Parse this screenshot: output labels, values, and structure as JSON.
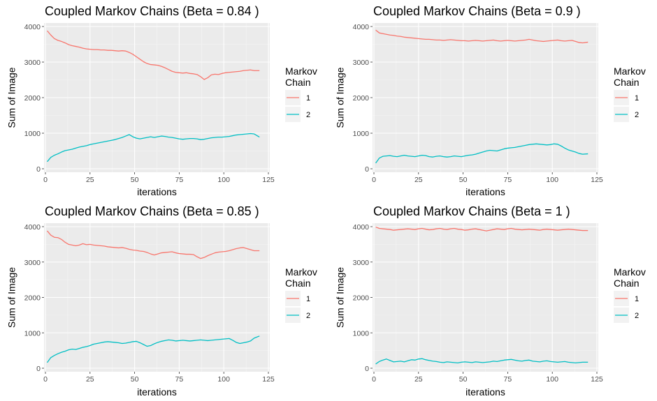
{
  "chart_data": [
    {
      "type": "line",
      "title": "Coupled Markov Chains (Beta = 0.84 )",
      "xlabel": "iterations",
      "ylabel": "Sum of Image",
      "xlim": [
        0,
        125
      ],
      "ylim": [
        0,
        4000
      ],
      "xticks": [
        0,
        25,
        50,
        75,
        100,
        125
      ],
      "yticks": [
        0,
        1000,
        2000,
        3000,
        4000
      ],
      "legend": {
        "title": [
          "Markov",
          "Chain"
        ],
        "position": "right"
      },
      "grid": true,
      "series": [
        {
          "name": "1",
          "color": "#F8766D",
          "x": [
            1,
            3,
            5,
            7,
            9,
            11,
            13,
            15,
            17,
            19,
            21,
            23,
            25,
            27,
            29,
            31,
            33,
            35,
            37,
            39,
            41,
            43,
            45,
            47,
            49,
            51,
            53,
            55,
            57,
            59,
            61,
            63,
            65,
            67,
            69,
            71,
            73,
            75,
            77,
            79,
            81,
            83,
            85,
            87,
            89,
            91,
            93,
            95,
            97,
            99,
            101,
            103,
            105,
            107,
            109,
            111,
            113,
            115,
            117,
            120
          ],
          "y": [
            3880,
            3760,
            3660,
            3610,
            3580,
            3540,
            3490,
            3460,
            3440,
            3420,
            3390,
            3370,
            3360,
            3350,
            3350,
            3340,
            3340,
            3330,
            3330,
            3320,
            3310,
            3320,
            3310,
            3270,
            3220,
            3150,
            3080,
            3010,
            2960,
            2930,
            2920,
            2910,
            2880,
            2840,
            2790,
            2740,
            2710,
            2700,
            2690,
            2700,
            2680,
            2670,
            2650,
            2590,
            2510,
            2560,
            2640,
            2660,
            2650,
            2680,
            2700,
            2710,
            2720,
            2730,
            2740,
            2760,
            2770,
            2780,
            2760,
            2760
          ]
        },
        {
          "name": "2",
          "color": "#00BFC4",
          "x": [
            1,
            3,
            5,
            7,
            9,
            11,
            13,
            15,
            17,
            19,
            21,
            23,
            25,
            27,
            29,
            31,
            33,
            35,
            37,
            39,
            41,
            43,
            45,
            47,
            49,
            51,
            53,
            55,
            57,
            59,
            61,
            63,
            65,
            67,
            69,
            71,
            73,
            75,
            77,
            79,
            81,
            83,
            85,
            87,
            89,
            91,
            93,
            95,
            97,
            99,
            101,
            103,
            105,
            107,
            109,
            111,
            113,
            115,
            117,
            120
          ],
          "y": [
            200,
            320,
            380,
            420,
            470,
            510,
            530,
            550,
            580,
            610,
            630,
            650,
            680,
            700,
            720,
            740,
            760,
            780,
            800,
            820,
            850,
            880,
            920,
            960,
            900,
            860,
            840,
            860,
            880,
            900,
            880,
            900,
            920,
            910,
            890,
            880,
            860,
            840,
            830,
            840,
            850,
            850,
            840,
            820,
            830,
            850,
            870,
            880,
            890,
            890,
            900,
            910,
            930,
            950,
            960,
            970,
            980,
            990,
            980,
            890
          ]
        }
      ]
    },
    {
      "type": "line",
      "title": "Coupled Markov Chains (Beta = 0.9 )",
      "xlabel": "iterations",
      "ylabel": "Sum of Image",
      "xlim": [
        0,
        125
      ],
      "ylim": [
        0,
        4000
      ],
      "xticks": [
        0,
        25,
        50,
        75,
        100,
        125
      ],
      "yticks": [
        0,
        1000,
        2000,
        3000,
        4000
      ],
      "legend": {
        "title": [
          "Markov",
          "Chain"
        ],
        "position": "right"
      },
      "grid": true,
      "series": [
        {
          "name": "1",
          "color": "#F8766D",
          "x": [
            1,
            3,
            5,
            7,
            9,
            11,
            13,
            15,
            17,
            19,
            21,
            23,
            25,
            27,
            29,
            31,
            33,
            35,
            37,
            39,
            41,
            43,
            45,
            47,
            49,
            51,
            53,
            55,
            57,
            59,
            61,
            63,
            65,
            67,
            69,
            71,
            73,
            75,
            77,
            79,
            81,
            83,
            85,
            87,
            89,
            91,
            93,
            95,
            97,
            99,
            101,
            103,
            105,
            107,
            109,
            111,
            113,
            115,
            117,
            120
          ],
          "y": [
            3900,
            3820,
            3800,
            3780,
            3760,
            3750,
            3730,
            3720,
            3700,
            3690,
            3680,
            3670,
            3660,
            3650,
            3640,
            3640,
            3630,
            3620,
            3620,
            3610,
            3620,
            3630,
            3620,
            3610,
            3600,
            3600,
            3590,
            3600,
            3610,
            3600,
            3590,
            3600,
            3610,
            3620,
            3600,
            3590,
            3600,
            3610,
            3600,
            3590,
            3600,
            3610,
            3620,
            3640,
            3620,
            3600,
            3590,
            3580,
            3590,
            3600,
            3610,
            3620,
            3600,
            3590,
            3600,
            3610,
            3580,
            3550,
            3540,
            3560
          ]
        },
        {
          "name": "2",
          "color": "#00BFC4",
          "x": [
            1,
            3,
            5,
            7,
            9,
            11,
            13,
            15,
            17,
            19,
            21,
            23,
            25,
            27,
            29,
            31,
            33,
            35,
            37,
            39,
            41,
            43,
            45,
            47,
            49,
            51,
            53,
            55,
            57,
            59,
            61,
            63,
            65,
            67,
            69,
            71,
            73,
            75,
            77,
            79,
            81,
            83,
            85,
            87,
            89,
            91,
            93,
            95,
            97,
            99,
            101,
            103,
            105,
            107,
            109,
            111,
            113,
            115,
            117,
            120
          ],
          "y": [
            160,
            300,
            350,
            360,
            370,
            350,
            340,
            360,
            380,
            360,
            350,
            340,
            360,
            380,
            370,
            340,
            330,
            350,
            360,
            340,
            330,
            340,
            360,
            350,
            340,
            360,
            380,
            390,
            410,
            440,
            470,
            500,
            520,
            510,
            500,
            530,
            560,
            580,
            590,
            600,
            620,
            640,
            660,
            680,
            690,
            700,
            690,
            680,
            670,
            680,
            700,
            690,
            640,
            580,
            530,
            500,
            470,
            430,
            410,
            420
          ]
        }
      ]
    },
    {
      "type": "line",
      "title": "Coupled Markov Chains (Beta = 0.85 )",
      "xlabel": "iterations",
      "ylabel": "Sum of Image",
      "xlim": [
        0,
        125
      ],
      "ylim": [
        0,
        4000
      ],
      "xticks": [
        0,
        25,
        50,
        75,
        100,
        125
      ],
      "yticks": [
        0,
        1000,
        2000,
        3000,
        4000
      ],
      "legend": {
        "title": [
          "Markov",
          "Chain"
        ],
        "position": "right"
      },
      "grid": true,
      "series": [
        {
          "name": "1",
          "color": "#F8766D",
          "x": [
            1,
            3,
            5,
            7,
            9,
            11,
            13,
            15,
            17,
            19,
            21,
            23,
            25,
            27,
            29,
            31,
            33,
            35,
            37,
            39,
            41,
            43,
            45,
            47,
            49,
            51,
            53,
            55,
            57,
            59,
            61,
            63,
            65,
            67,
            69,
            71,
            73,
            75,
            77,
            79,
            81,
            83,
            85,
            87,
            89,
            91,
            93,
            95,
            97,
            99,
            101,
            103,
            105,
            107,
            109,
            111,
            113,
            115,
            117,
            120
          ],
          "y": [
            3880,
            3760,
            3700,
            3690,
            3640,
            3560,
            3500,
            3480,
            3460,
            3480,
            3520,
            3490,
            3500,
            3480,
            3470,
            3460,
            3450,
            3430,
            3420,
            3410,
            3400,
            3410,
            3390,
            3360,
            3340,
            3330,
            3310,
            3300,
            3270,
            3230,
            3200,
            3230,
            3260,
            3270,
            3280,
            3290,
            3260,
            3240,
            3230,
            3220,
            3220,
            3210,
            3150,
            3100,
            3130,
            3180,
            3220,
            3260,
            3280,
            3290,
            3300,
            3320,
            3350,
            3380,
            3400,
            3410,
            3380,
            3350,
            3320,
            3320
          ]
        },
        {
          "name": "2",
          "color": "#00BFC4",
          "x": [
            1,
            3,
            5,
            7,
            9,
            11,
            13,
            15,
            17,
            19,
            21,
            23,
            25,
            27,
            29,
            31,
            33,
            35,
            37,
            39,
            41,
            43,
            45,
            47,
            49,
            51,
            53,
            55,
            57,
            59,
            61,
            63,
            65,
            67,
            69,
            71,
            73,
            75,
            77,
            79,
            81,
            83,
            85,
            87,
            89,
            91,
            93,
            95,
            97,
            99,
            101,
            103,
            105,
            107,
            109,
            111,
            113,
            115,
            117,
            120
          ],
          "y": [
            160,
            300,
            360,
            410,
            450,
            480,
            520,
            540,
            530,
            560,
            590,
            610,
            640,
            680,
            700,
            720,
            740,
            750,
            740,
            730,
            720,
            700,
            710,
            730,
            750,
            760,
            720,
            670,
            620,
            640,
            690,
            730,
            760,
            780,
            800,
            790,
            770,
            780,
            790,
            780,
            770,
            780,
            790,
            800,
            790,
            780,
            790,
            800,
            810,
            820,
            830,
            840,
            790,
            730,
            700,
            720,
            740,
            770,
            850,
            910
          ]
        }
      ]
    },
    {
      "type": "line",
      "title": "Coupled Markov Chains (Beta = 1 )",
      "xlabel": "iterations",
      "ylabel": "Sum of Image",
      "xlim": [
        0,
        125
      ],
      "ylim": [
        0,
        4000
      ],
      "xticks": [
        0,
        25,
        50,
        75,
        100,
        125
      ],
      "yticks": [
        0,
        1000,
        2000,
        3000,
        4000
      ],
      "legend": {
        "title": [
          "Markov",
          "Chain"
        ],
        "position": "right"
      },
      "grid": true,
      "series": [
        {
          "name": "1",
          "color": "#F8766D",
          "x": [
            1,
            3,
            5,
            7,
            9,
            11,
            13,
            15,
            17,
            19,
            21,
            23,
            25,
            27,
            29,
            31,
            33,
            35,
            37,
            39,
            41,
            43,
            45,
            47,
            49,
            51,
            53,
            55,
            57,
            59,
            61,
            63,
            65,
            67,
            69,
            71,
            73,
            75,
            77,
            79,
            81,
            83,
            85,
            87,
            89,
            91,
            93,
            95,
            97,
            99,
            101,
            103,
            105,
            107,
            109,
            111,
            113,
            115,
            117,
            120
          ],
          "y": [
            3990,
            3950,
            3940,
            3930,
            3920,
            3900,
            3910,
            3920,
            3930,
            3940,
            3930,
            3920,
            3940,
            3950,
            3930,
            3910,
            3920,
            3940,
            3950,
            3930,
            3920,
            3940,
            3950,
            3930,
            3920,
            3900,
            3910,
            3930,
            3940,
            3920,
            3900,
            3880,
            3900,
            3920,
            3940,
            3930,
            3920,
            3940,
            3950,
            3930,
            3920,
            3910,
            3920,
            3930,
            3920,
            3910,
            3900,
            3920,
            3930,
            3920,
            3910,
            3900,
            3910,
            3920,
            3930,
            3920,
            3910,
            3900,
            3890,
            3890
          ]
        },
        {
          "name": "2",
          "color": "#00BFC4",
          "x": [
            1,
            3,
            5,
            7,
            9,
            11,
            13,
            15,
            17,
            19,
            21,
            23,
            25,
            27,
            29,
            31,
            33,
            35,
            37,
            39,
            41,
            43,
            45,
            47,
            49,
            51,
            53,
            55,
            57,
            59,
            61,
            63,
            65,
            67,
            69,
            71,
            73,
            75,
            77,
            79,
            81,
            83,
            85,
            87,
            89,
            91,
            93,
            95,
            97,
            99,
            101,
            103,
            105,
            107,
            109,
            111,
            113,
            115,
            117,
            120
          ],
          "y": [
            120,
            190,
            230,
            260,
            220,
            180,
            190,
            200,
            180,
            210,
            240,
            230,
            260,
            270,
            240,
            220,
            200,
            190,
            170,
            160,
            180,
            170,
            160,
            150,
            170,
            180,
            170,
            160,
            180,
            170,
            160,
            170,
            180,
            200,
            190,
            210,
            230,
            240,
            250,
            230,
            210,
            200,
            220,
            230,
            200,
            190,
            180,
            200,
            210,
            190,
            180,
            170,
            180,
            190,
            170,
            160,
            150,
            160,
            170,
            170
          ]
        }
      ]
    }
  ]
}
